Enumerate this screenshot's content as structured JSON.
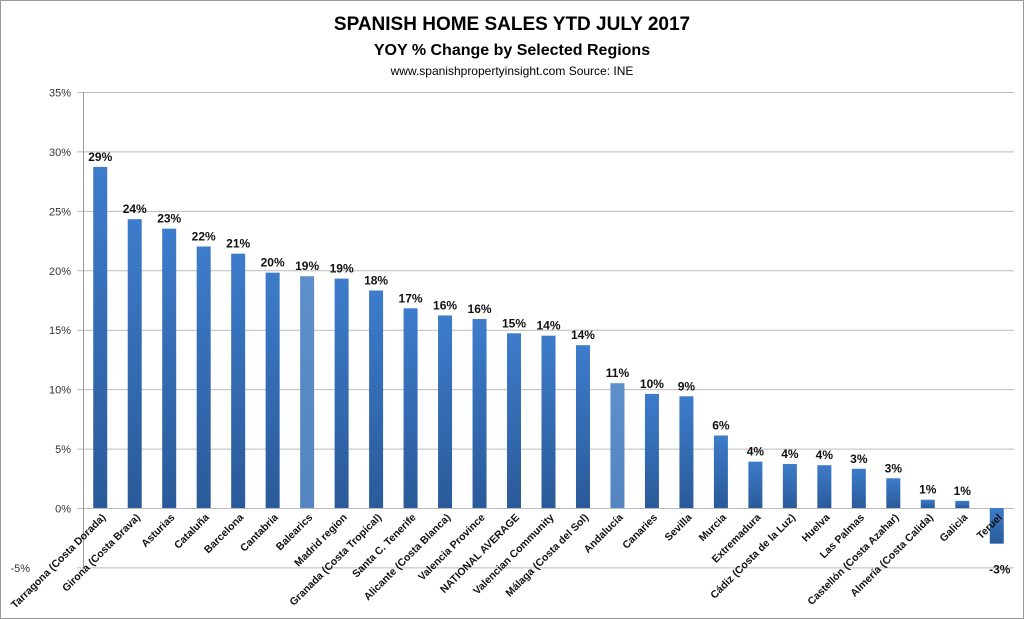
{
  "chart_data": {
    "type": "bar",
    "title": "SPANISH HOME SALES YTD JULY 2017",
    "subtitle": "YOY % Change by Selected Regions",
    "source": "www.spanishpropertyinsight.com Source: INE",
    "xlabel": "",
    "ylabel": "",
    "ylim": [
      -5,
      35
    ],
    "yticks": [
      -5,
      0,
      5,
      10,
      15,
      20,
      25,
      30,
      35
    ],
    "ytick_labels": [
      "-5%",
      "0%",
      "5%",
      "10%",
      "15%",
      "20%",
      "25%",
      "30%",
      "35%"
    ],
    "grid": true,
    "categories": [
      "Tarragona (Costa Dorada)",
      "Girona (Costa Brava)",
      "Asturias",
      "Cataluña",
      "Barcelona",
      "Cantabria",
      "Balearics",
      "Madrid region",
      "Granada (Costa Tropical)",
      "Santa C. Tenerife",
      "Alicante (Costa Blanca)",
      "Valencia Province",
      "NATIONAL AVERAGE",
      "Valencian Community",
      "Málaga (Costa del Sol)",
      "Andalucía",
      "Canaries",
      "Sevilla",
      "Murcia",
      "Extremadura",
      "Cádiz (Costa de la Luz)",
      "Huelva",
      "Las Palmas",
      "Castellón (Costa Azahar)",
      "Almería (Costa Calida)",
      "Galicia",
      "Teruel"
    ],
    "values": [
      28.7,
      24.3,
      23.5,
      22.0,
      21.4,
      19.8,
      19.5,
      19.3,
      18.3,
      16.8,
      16.2,
      15.9,
      14.7,
      14.5,
      13.7,
      10.5,
      9.6,
      9.4,
      6.1,
      3.9,
      3.7,
      3.6,
      3.3,
      2.5,
      0.7,
      0.6,
      -3.0
    ],
    "data_labels": [
      "29%",
      "24%",
      "23%",
      "22%",
      "21%",
      "20%",
      "19%",
      "19%",
      "18%",
      "17%",
      "16%",
      "16%",
      "15%",
      "14%",
      "14%",
      "11%",
      "10%",
      "9%",
      "6%",
      "4%",
      "4%",
      "4%",
      "3%",
      "3%",
      "1%",
      "1%",
      "-3%"
    ],
    "highlighted": [
      "Balearics",
      "Andalucía"
    ],
    "colors": {
      "bar": "#3a78c6",
      "bar_dark": "#2b5c9c",
      "highlight": "#5b8cc8"
    }
  }
}
